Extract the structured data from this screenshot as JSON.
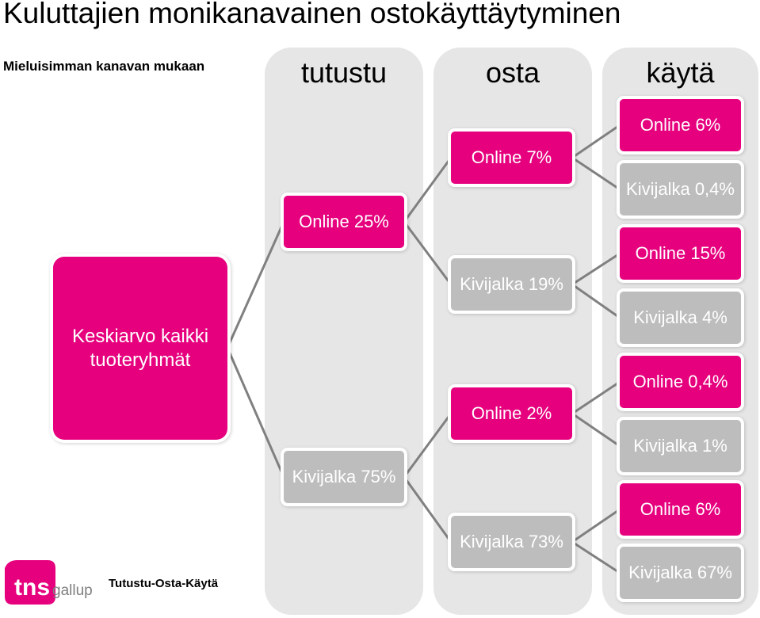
{
  "title": "Kuluttajien monikanavainen ostokäyttäytyminen",
  "subtitle": "Mieluisimman kanavan mukaan",
  "columns": [
    "tutustu",
    "osta",
    "käytä"
  ],
  "root": {
    "line1": "Keskiarvo kaikki",
    "line2": "tuoteryhmät"
  },
  "level1": [
    {
      "label": "Online 25%",
      "channel": "online"
    },
    {
      "label": "Kivijalka 75%",
      "channel": "kivijalka"
    }
  ],
  "level2": [
    {
      "label": "Online 7%",
      "channel": "online"
    },
    {
      "label": "Kivijalka 19%",
      "channel": "kivijalka"
    },
    {
      "label": "Online 2%",
      "channel": "online"
    },
    {
      "label": "Kivijalka 73%",
      "channel": "kivijalka"
    }
  ],
  "level3": [
    {
      "label": "Online 6%",
      "channel": "online"
    },
    {
      "label": "Kivijalka 0,4%",
      "channel": "kivijalka"
    },
    {
      "label": "Online 15%",
      "channel": "online"
    },
    {
      "label": "Kivijalka 4%",
      "channel": "kivijalka"
    },
    {
      "label": "Online 0,4%",
      "channel": "online"
    },
    {
      "label": "Kivijalka 1%",
      "channel": "kivijalka"
    },
    {
      "label": "Online 6%",
      "channel": "online"
    },
    {
      "label": "Kivijalka 67%",
      "channel": "kivijalka"
    }
  ],
  "footer": {
    "label": "Tutustu-Osta-Käytä",
    "logo_tns": "tns",
    "logo_gallup": "gallup"
  },
  "colors": {
    "online": "#e6007e",
    "kivijalka": "#bdbdbd",
    "column_bg": "#e6e6e6",
    "connector": "#808080"
  }
}
